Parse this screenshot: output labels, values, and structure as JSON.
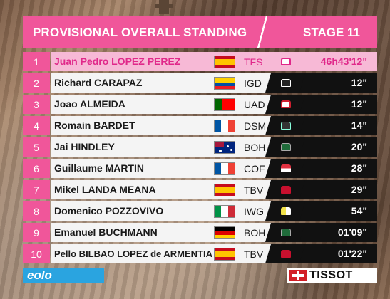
{
  "header": {
    "title": "PROVISIONAL OVERALL STANDING",
    "stage": "STAGE 11"
  },
  "colors": {
    "accent": "#f0569a",
    "leader_row": "#f7b9d6",
    "time_bg": "#111111"
  },
  "standings": [
    {
      "pos": "1",
      "name": "Juan Pedro LOPEZ PEREZ",
      "flag": "spain",
      "team": "TFS",
      "jersey": "pink-jersey",
      "time": "46h43'12\""
    },
    {
      "pos": "2",
      "name": "Richard CARAPAZ",
      "flag": "ecuador",
      "team": "IGD",
      "jersey": "black-jersey",
      "time": "12\""
    },
    {
      "pos": "3",
      "name": "Joao ALMEIDA",
      "flag": "portugal",
      "team": "UAD",
      "jersey": "white-red-jersey",
      "time": "12\""
    },
    {
      "pos": "4",
      "name": "Romain BARDET",
      "flag": "france",
      "team": "DSM",
      "jersey": "black-jersey",
      "time": "14\""
    },
    {
      "pos": "5",
      "name": "Jai HINDLEY",
      "flag": "australia",
      "team": "BOH",
      "jersey": "green-jersey",
      "time": "20\""
    },
    {
      "pos": "6",
      "name": "Guillaume MARTIN",
      "flag": "france",
      "team": "COF",
      "jersey": "red-white-jersey",
      "time": "28\""
    },
    {
      "pos": "7",
      "name": "Mikel LANDA MEANA",
      "flag": "spain",
      "team": "TBV",
      "jersey": "red-jersey",
      "time": "29\""
    },
    {
      "pos": "8",
      "name": "Domenico POZZOVIVO",
      "flag": "italy",
      "team": "IWG",
      "jersey": "yellow-white-jersey",
      "time": "54\""
    },
    {
      "pos": "9",
      "name": "Emanuel BUCHMANN",
      "flag": "germany",
      "team": "BOH",
      "jersey": "green-jersey",
      "time": "01'09\""
    },
    {
      "pos": "10",
      "name": "Pello BILBAO LOPEZ de ARMENTIA",
      "flag": "spain",
      "team": "TBV",
      "jersey": "red-jersey",
      "time": "01'22\""
    }
  ],
  "logos": {
    "sponsor_left": "eolo",
    "sponsor_right": "TISSOT"
  }
}
